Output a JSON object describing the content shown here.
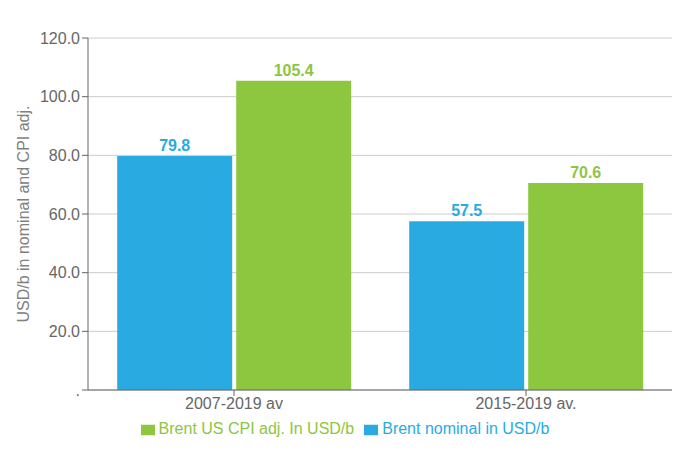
{
  "chart_data": {
    "type": "bar",
    "ylabel": "USD/b in nominal and CPI adj.",
    "categories": [
      "2007-2019 av",
      "2015-2019 av."
    ],
    "series": [
      {
        "name": "Brent nominal in USD/b",
        "color": "#29ABE2",
        "values": [
          79.8,
          57.5
        ]
      },
      {
        "name": "Brent US CPI adj. In USD/b",
        "color": "#8DC63F",
        "values": [
          105.4,
          70.6
        ]
      }
    ],
    "ylim": [
      0,
      120
    ],
    "yticks": [
      {
        "value": 0,
        "label": "."
      },
      {
        "value": 20,
        "label": "20.0"
      },
      {
        "value": 40,
        "label": "40.0"
      },
      {
        "value": 60,
        "label": "60.0"
      },
      {
        "value": 80,
        "label": "80.0"
      },
      {
        "value": 100,
        "label": "100.0"
      },
      {
        "value": 120,
        "label": "120.0"
      }
    ],
    "grid": true,
    "legend": "bottom",
    "data_labels": true
  }
}
